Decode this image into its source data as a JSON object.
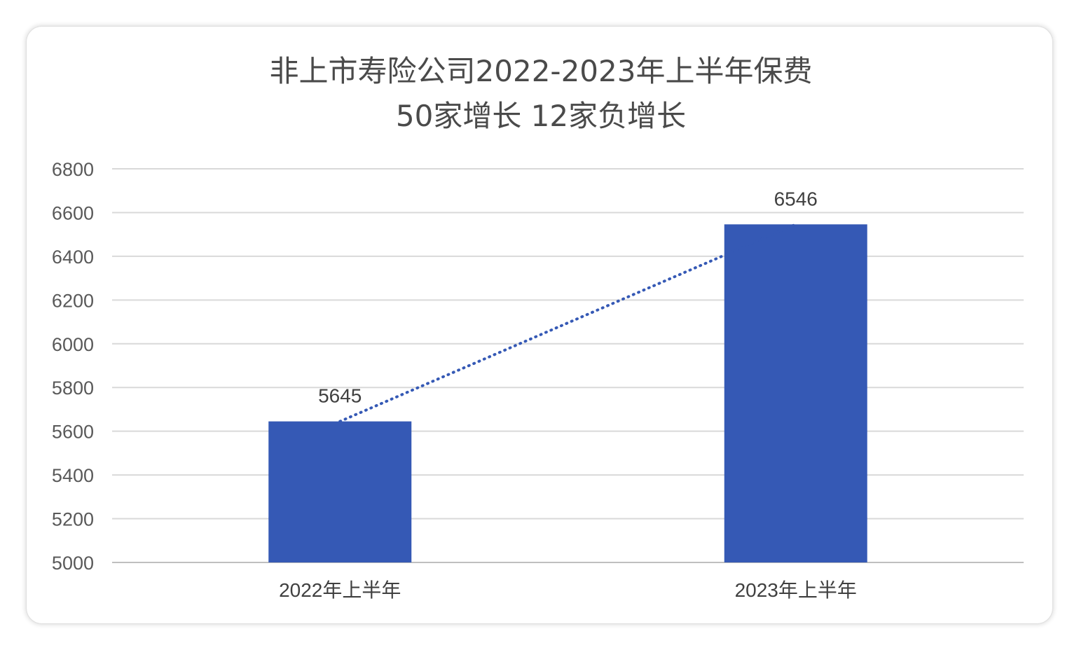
{
  "chart_data": {
    "type": "bar",
    "title_lines": [
      "非上市寿险公司2022-2023年上半年保费",
      "50家增长  12家负增长"
    ],
    "categories": [
      "2022年上半年",
      "2023年上半年"
    ],
    "values": [
      5645,
      6546
    ],
    "data_labels": [
      "5645",
      "6546"
    ],
    "ylim": [
      5000,
      6800
    ],
    "yticks": [
      "5000",
      "5200",
      "5400",
      "5600",
      "5800",
      "6000",
      "6200",
      "6400",
      "6600",
      "6800"
    ],
    "xlabel": "",
    "ylabel": "",
    "grid": true,
    "legend": "none",
    "trendline": "dotted",
    "colors": {
      "bar": "#3559b5",
      "trendline": "#3559b5",
      "grid": "#d9d9d9"
    }
  }
}
